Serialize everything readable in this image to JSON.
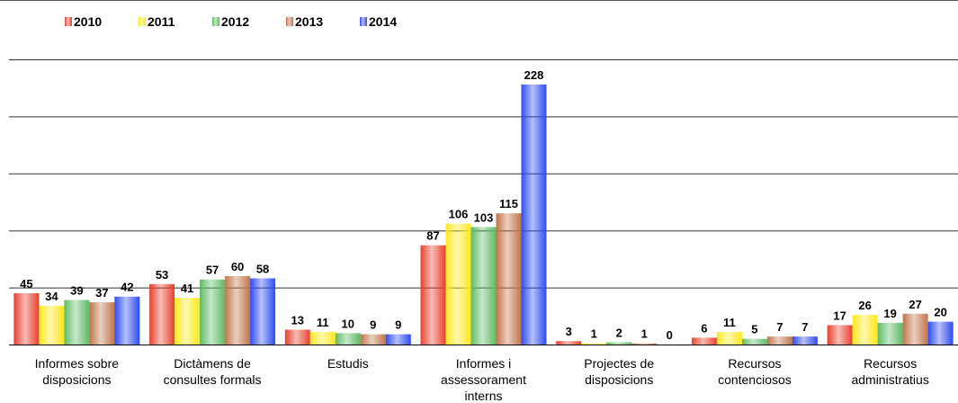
{
  "chart_data": {
    "type": "bar",
    "categories": [
      "Informes sobre\ndisposicions",
      "Dictàmens de\nconsultes formals",
      "Estudis",
      "Informes i\nassessorament\ninterns",
      "Projectes de\ndisposicions",
      "Recursos\ncontenciosos",
      "Recursos\nadministratius"
    ],
    "series": [
      {
        "name": "2010",
        "color": "#e8402c",
        "values": [
          45,
          53,
          13,
          87,
          3,
          6,
          17
        ]
      },
      {
        "name": "2011",
        "color": "#ffe81a",
        "values": [
          34,
          41,
          11,
          106,
          1,
          11,
          26
        ]
      },
      {
        "name": "2012",
        "color": "#5dbb63",
        "values": [
          39,
          57,
          10,
          103,
          2,
          5,
          19
        ]
      },
      {
        "name": "2013",
        "color": "#c0744a",
        "values": [
          37,
          60,
          9,
          115,
          1,
          7,
          27
        ]
      },
      {
        "name": "2014",
        "color": "#2d4cf0",
        "values": [
          42,
          58,
          9,
          228,
          0,
          7,
          20
        ]
      }
    ],
    "ylim": [
      0,
      250
    ],
    "yticks": [
      0,
      50,
      100,
      150,
      200,
      250
    ],
    "grid": true
  }
}
